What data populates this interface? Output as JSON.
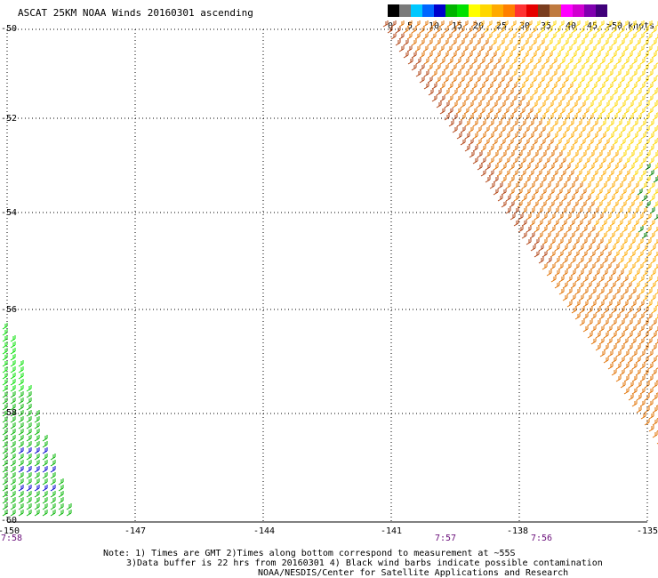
{
  "title": "ASCAT 25KM NOAA Winds 20160301 ascending",
  "legend": {
    "labels": [
      "0",
      "5",
      "10",
      "15",
      "20",
      "25",
      "30",
      "35",
      "40",
      "45",
      ">50 knots"
    ],
    "colors": [
      "#000000",
      "#7a7a7a",
      "#00c8ff",
      "#0066ff",
      "#0000cc",
      "#00b400",
      "#00e100",
      "#ffff00",
      "#ffd700",
      "#ffaa00",
      "#ff7f00",
      "#ff3333",
      "#e60000",
      "#7a3d1f",
      "#bf7a3f",
      "#ff00ff",
      "#d000d0",
      "#8000b0",
      "#40007a"
    ]
  },
  "map": {
    "lat_labels": [
      "-50",
      "-52",
      "-54",
      "-56",
      "-58",
      "-60"
    ],
    "lat_values": [
      -50,
      -52,
      -54,
      -56,
      -58,
      -60
    ],
    "lon_labels": [
      "-150",
      "-147",
      "-144",
      "-141",
      "-138",
      "-135"
    ],
    "lon_values": [
      -150,
      -147,
      -144,
      -141,
      -138,
      -135
    ],
    "time_labels": [
      "7:58",
      "7:57",
      "7:56"
    ]
  },
  "notes": [
    "Note: 1) Times are GMT 2)Times along bottom correspond to measurement at ~55S",
    "3)Data buffer is 22 hrs from 20160301 4) Black wind barbs indicate possible contamination",
    "NOAA/NESDIS/Center for Satellite Applications and Research"
  ],
  "wind_colors": {
    "light_green": "#00e100",
    "green": "#00b400",
    "dark_green": "#008000",
    "blue": "#0000cc",
    "yellow": "#ffd700",
    "orange": "#ffaa00",
    "dark_orange": "#e07000",
    "brown": "#b04010"
  }
}
